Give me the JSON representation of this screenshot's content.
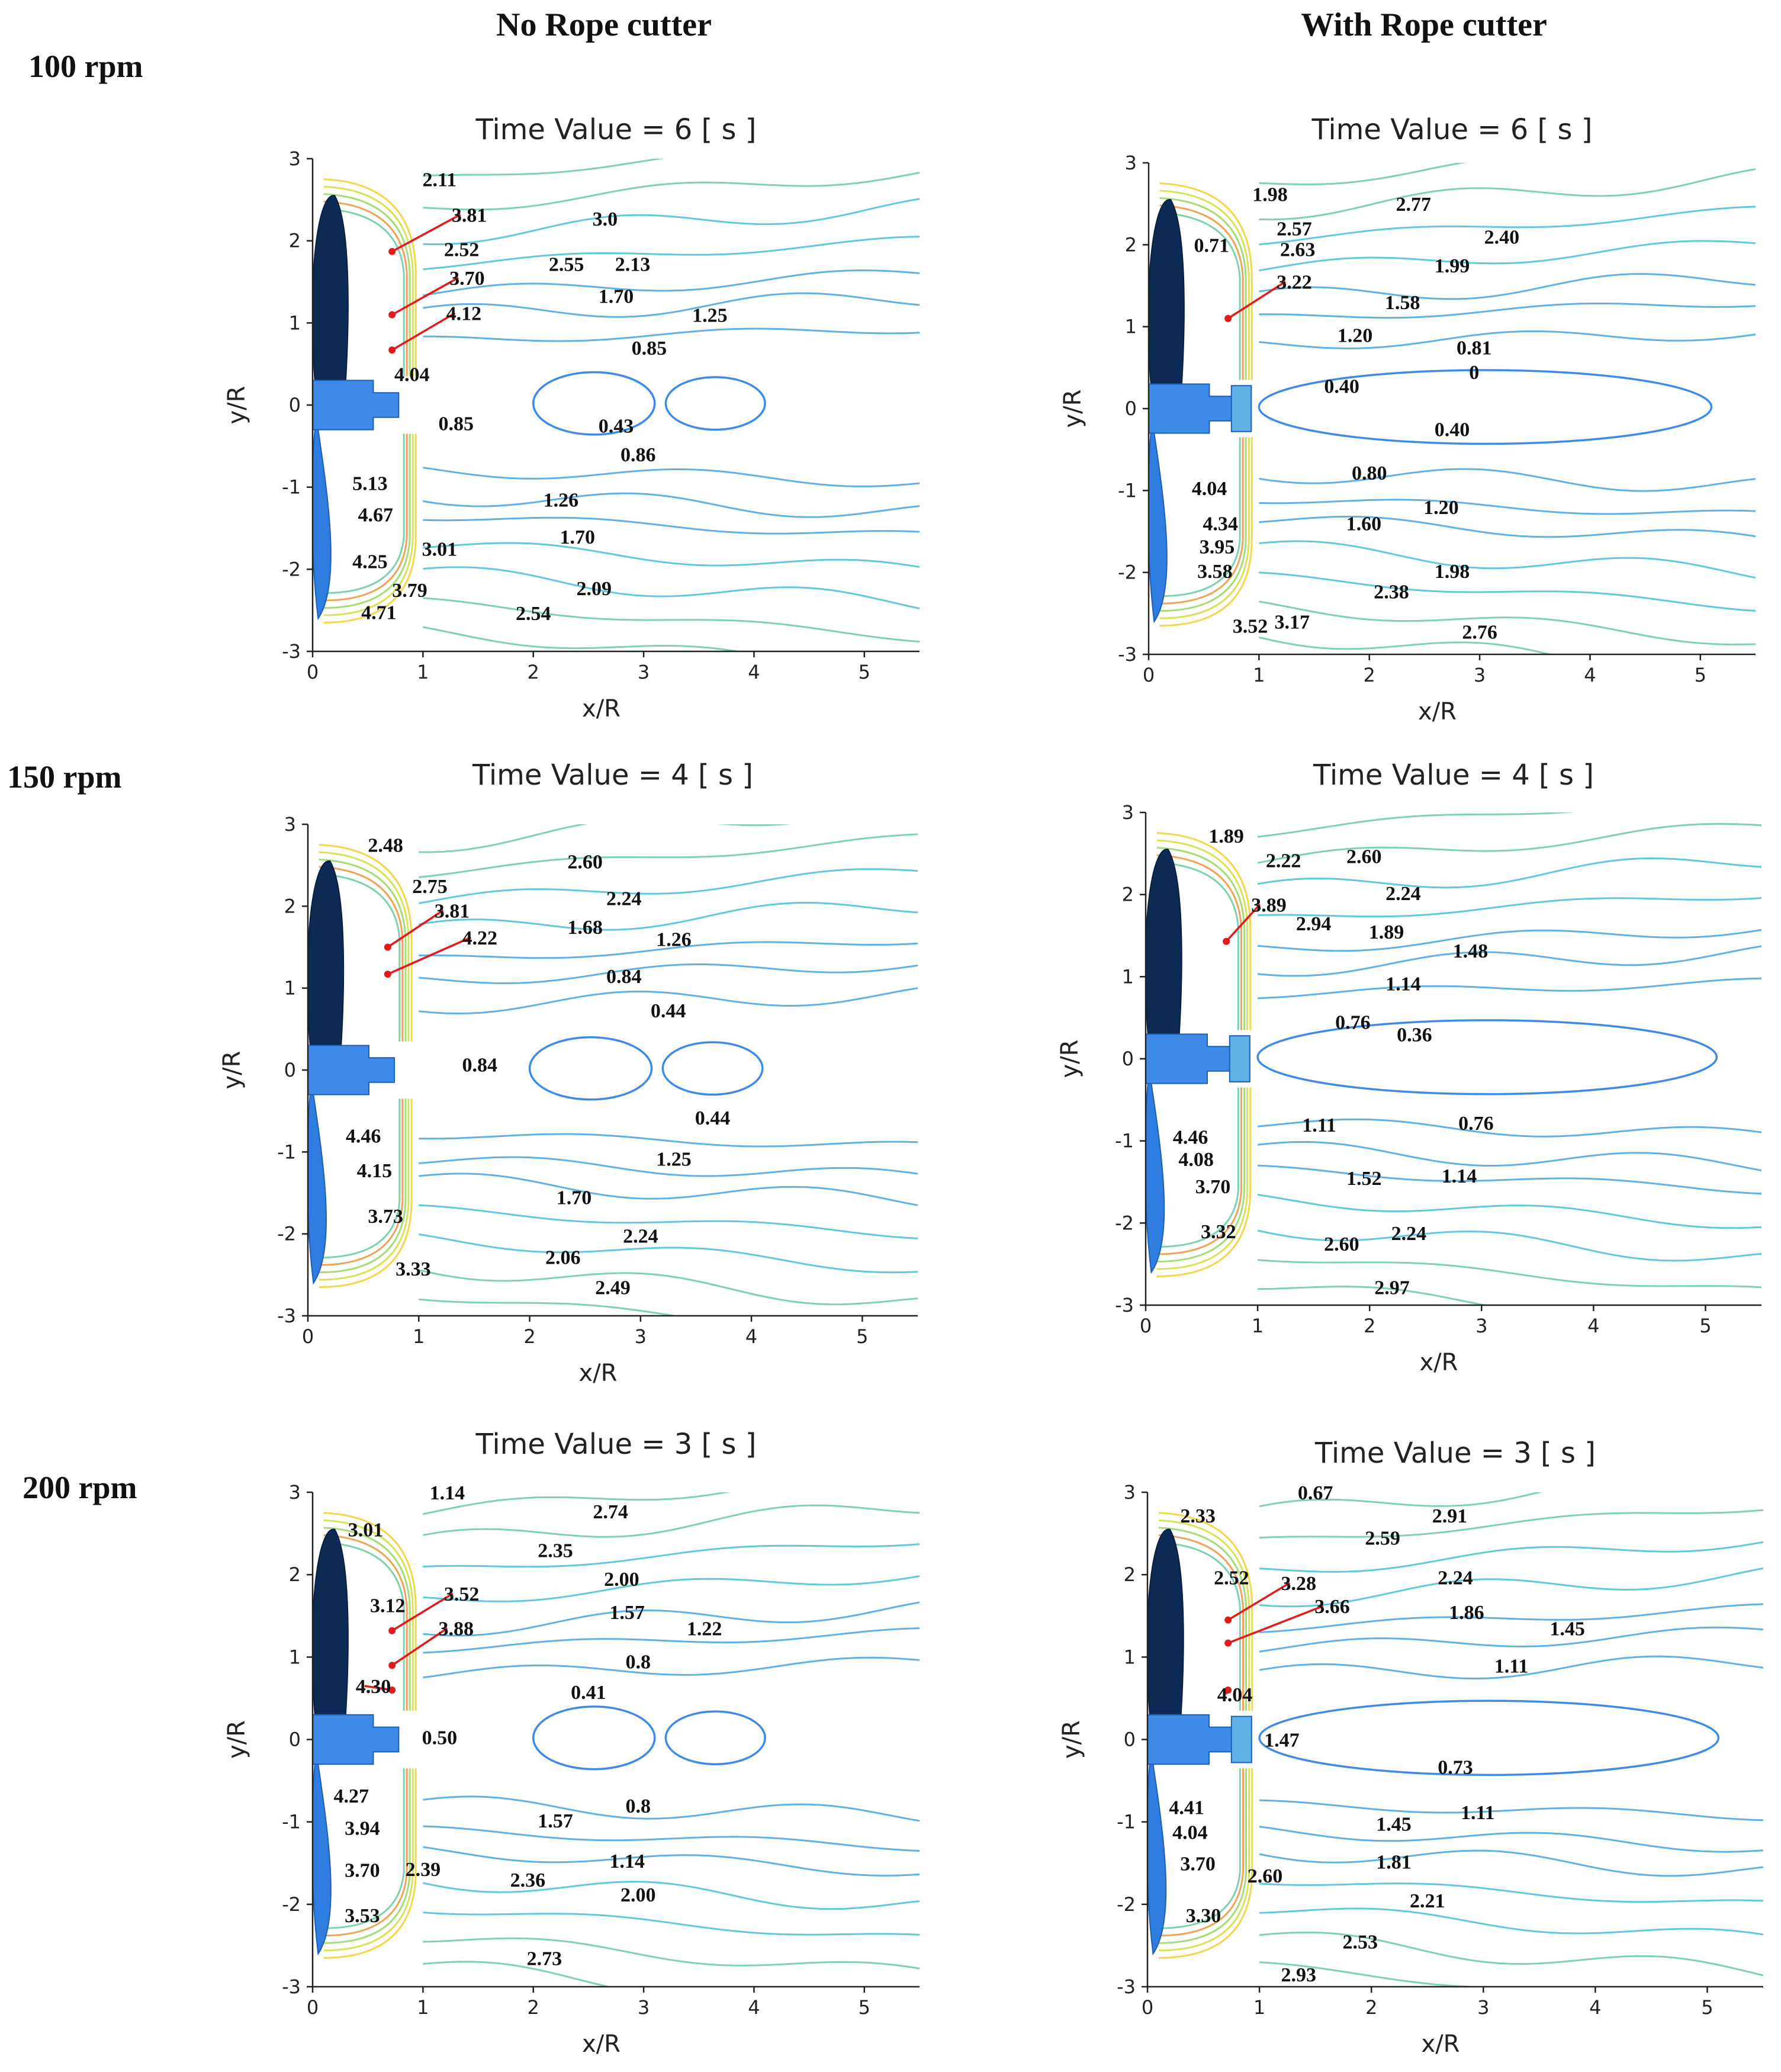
{
  "figure": {
    "column_headers": [
      "No Rope cutter",
      "With Rope cutter"
    ],
    "row_headers": [
      "100 rpm",
      "150 rpm",
      "200 rpm"
    ]
  },
  "chart_data": [
    {
      "type": "contour",
      "row": 0,
      "col": 0,
      "title": "Time Value = 6 [ s ]",
      "xlabel": "x/R",
      "ylabel": "y/R",
      "xlim": [
        0,
        5.5
      ],
      "ylim": [
        -3,
        3
      ],
      "xticks": [
        0,
        1,
        2,
        3,
        4,
        5
      ],
      "yticks": [
        3,
        2,
        1,
        0,
        -1,
        -2,
        -3
      ],
      "contour_labels": [
        {
          "text": "2.11",
          "x": 1.15,
          "y": 2.75
        },
        {
          "text": "3.81",
          "x": 1.42,
          "y": 2.32
        },
        {
          "text": "2.52",
          "x": 1.35,
          "y": 1.9
        },
        {
          "text": "3.70",
          "x": 1.4,
          "y": 1.55
        },
        {
          "text": "4.12",
          "x": 1.37,
          "y": 1.12
        },
        {
          "text": "4.04",
          "x": 0.9,
          "y": 0.38
        },
        {
          "text": "0.85",
          "x": 1.3,
          "y": -0.22
        },
        {
          "text": "3.0",
          "x": 2.65,
          "y": 2.27
        },
        {
          "text": "2.55",
          "x": 2.3,
          "y": 1.72
        },
        {
          "text": "2.13",
          "x": 2.9,
          "y": 1.72
        },
        {
          "text": "1.70",
          "x": 2.75,
          "y": 1.33
        },
        {
          "text": "1.25",
          "x": 3.6,
          "y": 1.1
        },
        {
          "text": "0.85",
          "x": 3.05,
          "y": 0.7
        },
        {
          "text": "0.43",
          "x": 2.75,
          "y": -0.25
        },
        {
          "text": "0.86",
          "x": 2.95,
          "y": -0.6
        },
        {
          "text": "5.13",
          "x": 0.52,
          "y": -0.95
        },
        {
          "text": "4.67",
          "x": 0.57,
          "y": -1.33
        },
        {
          "text": "4.25",
          "x": 0.52,
          "y": -1.9
        },
        {
          "text": "3.01",
          "x": 1.15,
          "y": -1.75
        },
        {
          "text": "3.79",
          "x": 0.88,
          "y": -2.25
        },
        {
          "text": "4.71",
          "x": 0.6,
          "y": -2.52
        },
        {
          "text": "1.26",
          "x": 2.25,
          "y": -1.15
        },
        {
          "text": "1.70",
          "x": 2.4,
          "y": -1.6
        },
        {
          "text": "2.09",
          "x": 2.55,
          "y": -2.23
        },
        {
          "text": "2.54",
          "x": 2.0,
          "y": -2.53
        }
      ],
      "contour_colors": [
        "#1f6fe0",
        "#3d8ae8",
        "#5fb1e6",
        "#62c9dc",
        "#7fd1b0",
        "#a6dc7a",
        "#d7e35a",
        "#f2d74f",
        "#f0a35a",
        "#e06060"
      ]
    },
    {
      "type": "contour",
      "row": 0,
      "col": 1,
      "title": "Time Value = 6 [ s ]",
      "xlabel": "x/R",
      "ylabel": "y/R",
      "xlim": [
        0,
        5.5
      ],
      "ylim": [
        -3,
        3
      ],
      "xticks": [
        0,
        1,
        2,
        3,
        4,
        5
      ],
      "yticks": [
        3,
        2,
        1,
        0,
        -1,
        -2,
        -3
      ],
      "contour_labels": [
        {
          "text": "1.98",
          "x": 1.1,
          "y": 2.62
        },
        {
          "text": "0.71",
          "x": 0.57,
          "y": 2.0
        },
        {
          "text": "2.57",
          "x": 1.32,
          "y": 2.2
        },
        {
          "text": "2.63",
          "x": 1.35,
          "y": 1.95
        },
        {
          "text": "3.22",
          "x": 1.32,
          "y": 1.55
        },
        {
          "text": "2.77",
          "x": 2.4,
          "y": 2.5
        },
        {
          "text": "2.40",
          "x": 3.2,
          "y": 2.1
        },
        {
          "text": "1.99",
          "x": 2.75,
          "y": 1.75
        },
        {
          "text": "1.58",
          "x": 2.3,
          "y": 1.3
        },
        {
          "text": "1.20",
          "x": 1.87,
          "y": 0.9
        },
        {
          "text": "0.81",
          "x": 2.95,
          "y": 0.75
        },
        {
          "text": "0",
          "x": 2.95,
          "y": 0.45
        },
        {
          "text": "0.40",
          "x": 1.75,
          "y": 0.28
        },
        {
          "text": "0.40",
          "x": 2.75,
          "y": -0.25
        },
        {
          "text": "0.80",
          "x": 2.0,
          "y": -0.78
        },
        {
          "text": "1.20",
          "x": 2.65,
          "y": -1.2
        },
        {
          "text": "1.60",
          "x": 1.95,
          "y": -1.4
        },
        {
          "text": "4.04",
          "x": 0.55,
          "y": -0.97
        },
        {
          "text": "4.34",
          "x": 0.65,
          "y": -1.4
        },
        {
          "text": "3.95",
          "x": 0.62,
          "y": -1.68
        },
        {
          "text": "3.58",
          "x": 0.6,
          "y": -1.98
        },
        {
          "text": "1.98",
          "x": 2.75,
          "y": -1.98
        },
        {
          "text": "2.38",
          "x": 2.2,
          "y": -2.23
        },
        {
          "text": "3.52",
          "x": 0.92,
          "y": -2.65
        },
        {
          "text": "3.17",
          "x": 1.3,
          "y": -2.6
        },
        {
          "text": "2.76",
          "x": 3.0,
          "y": -2.72
        }
      ],
      "contour_colors": [
        "#1f6fe0",
        "#3d8ae8",
        "#5fb1e6",
        "#62c9dc",
        "#7fd1b0",
        "#a6dc7a",
        "#d7e35a",
        "#f2d74f",
        "#f0a35a",
        "#e06060"
      ]
    },
    {
      "type": "contour",
      "row": 1,
      "col": 0,
      "title": "Time Value = 4 [ s ]",
      "xlabel": "x/R",
      "ylabel": "y/R",
      "xlim": [
        0,
        5.5
      ],
      "ylim": [
        -3,
        3
      ],
      "xticks": [
        0,
        1,
        2,
        3,
        4,
        5
      ],
      "yticks": [
        3,
        2,
        1,
        0,
        -1,
        -2,
        -3
      ],
      "contour_labels": [
        {
          "text": "2.48",
          "x": 0.7,
          "y": 2.75
        },
        {
          "text": "2.75",
          "x": 1.1,
          "y": 2.25
        },
        {
          "text": "3.81",
          "x": 1.3,
          "y": 1.95
        },
        {
          "text": "4.22",
          "x": 1.55,
          "y": 1.62
        },
        {
          "text": "2.60",
          "x": 2.5,
          "y": 2.55
        },
        {
          "text": "2.24",
          "x": 2.85,
          "y": 2.1
        },
        {
          "text": "1.68",
          "x": 2.5,
          "y": 1.75
        },
        {
          "text": "1.26",
          "x": 3.3,
          "y": 1.6
        },
        {
          "text": "0.84",
          "x": 2.85,
          "y": 1.15
        },
        {
          "text": "0.44",
          "x": 3.25,
          "y": 0.73
        },
        {
          "text": "0.84",
          "x": 1.55,
          "y": 0.07
        },
        {
          "text": "0.44",
          "x": 3.65,
          "y": -0.58
        },
        {
          "text": "4.46",
          "x": 0.5,
          "y": -0.8
        },
        {
          "text": "4.15",
          "x": 0.6,
          "y": -1.22
        },
        {
          "text": "1.25",
          "x": 3.3,
          "y": -1.08
        },
        {
          "text": "1.70",
          "x": 2.4,
          "y": -1.55
        },
        {
          "text": "3.73",
          "x": 0.7,
          "y": -1.78
        },
        {
          "text": "2.24",
          "x": 3.0,
          "y": -2.02
        },
        {
          "text": "2.06",
          "x": 2.3,
          "y": -2.28
        },
        {
          "text": "3.33",
          "x": 0.95,
          "y": -2.42
        },
        {
          "text": "2.49",
          "x": 2.75,
          "y": -2.65
        }
      ],
      "contour_colors": [
        "#1f6fe0",
        "#3d8ae8",
        "#5fb1e6",
        "#62c9dc",
        "#7fd1b0",
        "#a6dc7a",
        "#d7e35a",
        "#f2d74f",
        "#f0a35a",
        "#e06060"
      ]
    },
    {
      "type": "contour",
      "row": 1,
      "col": 1,
      "title": "Time Value = 4 [ s ]",
      "xlabel": "x/R",
      "ylabel": "y/R",
      "xlim": [
        0,
        5.5
      ],
      "ylim": [
        -3,
        3
      ],
      "xticks": [
        0,
        1,
        2,
        3,
        4,
        5
      ],
      "yticks": [
        3,
        2,
        1,
        0,
        -1,
        -2,
        -3
      ],
      "contour_labels": [
        {
          "text": "1.89",
          "x": 0.72,
          "y": 2.72
        },
        {
          "text": "2.22",
          "x": 1.23,
          "y": 2.42
        },
        {
          "text": "2.60",
          "x": 1.95,
          "y": 2.47
        },
        {
          "text": "3.89",
          "x": 1.1,
          "y": 1.88
        },
        {
          "text": "2.94",
          "x": 1.5,
          "y": 1.65
        },
        {
          "text": "2.24",
          "x": 2.3,
          "y": 2.02
        },
        {
          "text": "1.89",
          "x": 2.15,
          "y": 1.55
        },
        {
          "text": "1.48",
          "x": 2.9,
          "y": 1.32
        },
        {
          "text": "1.14",
          "x": 2.3,
          "y": 0.92
        },
        {
          "text": "0.76",
          "x": 1.85,
          "y": 0.45
        },
        {
          "text": "0.36",
          "x": 2.4,
          "y": 0.3
        },
        {
          "text": "1.11",
          "x": 1.55,
          "y": -0.8
        },
        {
          "text": "0.76",
          "x": 2.95,
          "y": -0.78
        },
        {
          "text": "4.46",
          "x": 0.4,
          "y": -0.95
        },
        {
          "text": "4.08",
          "x": 0.45,
          "y": -1.22
        },
        {
          "text": "3.70",
          "x": 0.6,
          "y": -1.55
        },
        {
          "text": "1.52",
          "x": 1.95,
          "y": -1.45
        },
        {
          "text": "1.14",
          "x": 2.8,
          "y": -1.42
        },
        {
          "text": "3.32",
          "x": 0.65,
          "y": -2.1
        },
        {
          "text": "2.24",
          "x": 2.35,
          "y": -2.12
        },
        {
          "text": "2.60",
          "x": 1.75,
          "y": -2.25
        },
        {
          "text": "2.97",
          "x": 2.2,
          "y": -2.78
        }
      ],
      "contour_colors": [
        "#1f6fe0",
        "#3d8ae8",
        "#5fb1e6",
        "#62c9dc",
        "#7fd1b0",
        "#a6dc7a",
        "#d7e35a",
        "#f2d74f",
        "#f0a35a",
        "#e06060"
      ]
    },
    {
      "type": "contour",
      "row": 2,
      "col": 0,
      "title": "Time Value = 3 [ s ]",
      "xlabel": "x/R",
      "ylabel": "y/R",
      "xlim": [
        0,
        5.5
      ],
      "ylim": [
        -3,
        3
      ],
      "xticks": [
        0,
        1,
        2,
        3,
        4,
        5
      ],
      "yticks": [
        3,
        2,
        1,
        0,
        -1,
        -2,
        -3
      ],
      "contour_labels": [
        {
          "text": "1.14",
          "x": 1.22,
          "y": 3.0
        },
        {
          "text": "3.01",
          "x": 0.48,
          "y": 2.55
        },
        {
          "text": "2.74",
          "x": 2.7,
          "y": 2.77
        },
        {
          "text": "2.35",
          "x": 2.2,
          "y": 2.3
        },
        {
          "text": "2.00",
          "x": 2.8,
          "y": 1.95
        },
        {
          "text": "3.52",
          "x": 1.35,
          "y": 1.77
        },
        {
          "text": "3.12",
          "x": 0.68,
          "y": 1.63
        },
        {
          "text": "3.88",
          "x": 1.3,
          "y": 1.35
        },
        {
          "text": "1.57",
          "x": 2.85,
          "y": 1.55
        },
        {
          "text": "1.22",
          "x": 3.55,
          "y": 1.35
        },
        {
          "text": "0.8",
          "x": 2.95,
          "y": 0.95
        },
        {
          "text": "4.30",
          "x": 0.55,
          "y": 0.65
        },
        {
          "text": "0.41",
          "x": 2.5,
          "y": 0.58
        },
        {
          "text": "0.50",
          "x": 1.15,
          "y": 0.03
        },
        {
          "text": "4.27",
          "x": 0.35,
          "y": -0.68
        },
        {
          "text": "0.8",
          "x": 2.95,
          "y": -0.8
        },
        {
          "text": "3.94",
          "x": 0.45,
          "y": -1.07
        },
        {
          "text": "1.57",
          "x": 2.2,
          "y": -0.98
        },
        {
          "text": "1.14",
          "x": 2.85,
          "y": -1.47
        },
        {
          "text": "3.70",
          "x": 0.45,
          "y": -1.58
        },
        {
          "text": "2.39",
          "x": 1.0,
          "y": -1.57
        },
        {
          "text": "2.36",
          "x": 1.95,
          "y": -1.7
        },
        {
          "text": "2.00",
          "x": 2.95,
          "y": -1.88
        },
        {
          "text": "3.53",
          "x": 0.45,
          "y": -2.13
        },
        {
          "text": "2.73",
          "x": 2.1,
          "y": -2.65
        }
      ],
      "contour_colors": [
        "#1f6fe0",
        "#3d8ae8",
        "#5fb1e6",
        "#62c9dc",
        "#7fd1b0",
        "#a6dc7a",
        "#d7e35a",
        "#f2d74f",
        "#f0a35a",
        "#e06060"
      ]
    },
    {
      "type": "contour",
      "row": 2,
      "col": 1,
      "title": "Time Value = 3 [ s ]",
      "xlabel": "x/R",
      "ylabel": "y/R",
      "xlim": [
        0,
        5.5
      ],
      "ylim": [
        -3,
        3
      ],
      "xticks": [
        0,
        1,
        2,
        3,
        4,
        5
      ],
      "yticks": [
        3,
        2,
        1,
        0,
        -1,
        -2,
        -3
      ],
      "contour_labels": [
        {
          "text": "0.67",
          "x": 1.5,
          "y": 3.0
        },
        {
          "text": "2.33",
          "x": 0.45,
          "y": 2.72
        },
        {
          "text": "2.91",
          "x": 2.7,
          "y": 2.72
        },
        {
          "text": "2.59",
          "x": 2.1,
          "y": 2.45
        },
        {
          "text": "2.52",
          "x": 0.75,
          "y": 1.97
        },
        {
          "text": "3.28",
          "x": 1.35,
          "y": 1.9
        },
        {
          "text": "3.66",
          "x": 1.65,
          "y": 1.62
        },
        {
          "text": "2.24",
          "x": 2.75,
          "y": 1.97
        },
        {
          "text": "1.86",
          "x": 2.85,
          "y": 1.55
        },
        {
          "text": "1.45",
          "x": 3.75,
          "y": 1.35
        },
        {
          "text": "1.11",
          "x": 3.25,
          "y": 0.9
        },
        {
          "text": "4.04",
          "x": 0.78,
          "y": 0.55
        },
        {
          "text": "1.47",
          "x": 1.2,
          "y": 0.0
        },
        {
          "text": "0.73",
          "x": 2.75,
          "y": -0.33
        },
        {
          "text": "4.41",
          "x": 0.35,
          "y": -0.82
        },
        {
          "text": "1.11",
          "x": 2.95,
          "y": -0.88
        },
        {
          "text": "4.04",
          "x": 0.38,
          "y": -1.12
        },
        {
          "text": "1.45",
          "x": 2.2,
          "y": -1.02
        },
        {
          "text": "3.70",
          "x": 0.45,
          "y": -1.5
        },
        {
          "text": "1.81",
          "x": 2.2,
          "y": -1.48
        },
        {
          "text": "2.60",
          "x": 1.05,
          "y": -1.65
        },
        {
          "text": "2.21",
          "x": 2.5,
          "y": -1.95
        },
        {
          "text": "3.30",
          "x": 0.5,
          "y": -2.13
        },
        {
          "text": "2.53",
          "x": 1.9,
          "y": -2.45
        },
        {
          "text": "2.93",
          "x": 1.35,
          "y": -2.85
        }
      ],
      "contour_colors": [
        "#1f6fe0",
        "#3d8ae8",
        "#5fb1e6",
        "#62c9dc",
        "#7fd1b0",
        "#a6dc7a",
        "#d7e35a",
        "#f2d74f",
        "#f0a35a",
        "#e06060"
      ]
    }
  ]
}
